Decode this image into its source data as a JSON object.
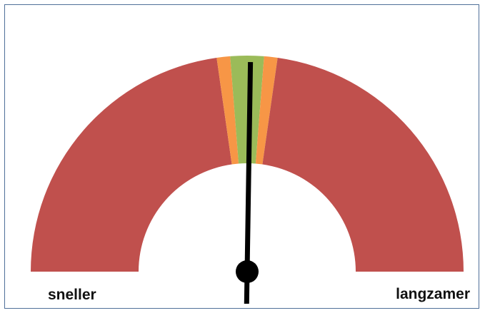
{
  "chart_data": {
    "type": "gauge",
    "title": "",
    "range": [
      0,
      100
    ],
    "segments": [
      {
        "from": 0,
        "to": 45.5,
        "color": "#c0504d"
      },
      {
        "from": 45.5,
        "to": 47.5,
        "color": "#f79646"
      },
      {
        "from": 47.5,
        "to": 52.5,
        "color": "#9bbb59"
      },
      {
        "from": 52.5,
        "to": 54.5,
        "color": "#f79646"
      },
      {
        "from": 54.5,
        "to": 100,
        "color": "#c0504d"
      }
    ],
    "needle_value": 50.5,
    "needle_color": "#000000",
    "left_label": "sneller",
    "right_label": "langzamer"
  }
}
